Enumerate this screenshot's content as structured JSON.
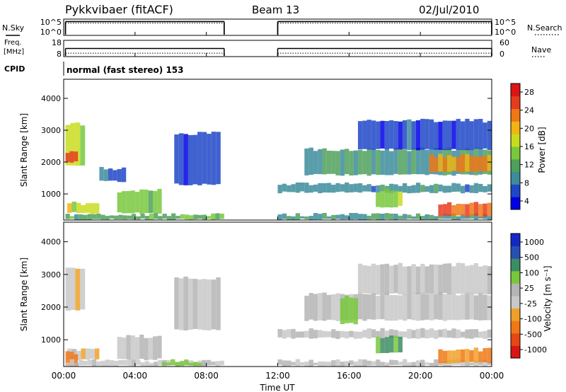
{
  "header": {
    "title": "Pykkvibaer (fitACF)",
    "beam": "Beam 13",
    "date": "02/Jul/2010"
  },
  "strip_labels": {
    "nsky": "N.Sky",
    "nsearch": "N.Search",
    "freq_line1": "Freq.",
    "freq_line2": "[MHz]",
    "nave": "Nave",
    "cpid": "CPID",
    "cpid_text": "normal (fast stereo) 153"
  },
  "colors": {
    "power_scale": [
      "#0000e6",
      "#1e46c8",
      "#3c8c9b",
      "#4fa05a",
      "#78c83c",
      "#c8dc1e",
      "#f0b414",
      "#f07814",
      "#e63c1e",
      "#dc1414"
    ],
    "velocity_scale": [
      "#dc1414",
      "#e64614",
      "#f07814",
      "#f0a028",
      "#c8c8c8",
      "#b4b4b4",
      "#78c83c",
      "#3c8c64",
      "#2850b4",
      "#1428c8"
    ]
  },
  "chart_data": [
    {
      "type": "line",
      "name": "N.Sky / N.Search",
      "left_ticks": [
        "10^5",
        "10^0"
      ],
      "right_ticks": [
        "10^5",
        "10^0"
      ],
      "x_range": [
        0,
        24
      ],
      "segments": [
        [
          0.1,
          9.0
        ],
        [
          12.0,
          24.0
        ]
      ],
      "series": [
        {
          "name": "N.Sky",
          "values_level": 0.85
        },
        {
          "name": "N.Search",
          "values_level": 0.85
        }
      ]
    },
    {
      "type": "line",
      "name": "Freq / Nave",
      "left_ticks": [
        "18",
        "8"
      ],
      "right_ticks": [
        "60",
        "0"
      ],
      "x_range": [
        0,
        24
      ],
      "segments": [
        [
          0.1,
          9.0
        ],
        [
          12.0,
          24.0
        ]
      ],
      "series": [
        {
          "name": "Freq",
          "level": 0.5
        },
        {
          "name": "Nave",
          "level": 0.3
        }
      ]
    },
    {
      "type": "heatmap",
      "name": "power",
      "ylabel": "Slant Range [km]",
      "x_range": [
        0,
        24
      ],
      "ylim": [
        180,
        4600
      ],
      "yticks": [
        1000,
        2000,
        3000,
        4000
      ],
      "colorbar": {
        "label": "Power [dB]",
        "ticks": [
          "28",
          "24",
          "20",
          "16",
          "12",
          "8",
          "4"
        ]
      },
      "features": [
        {
          "t0": 0.1,
          "t1": 1.2,
          "r0": 1900,
          "r1": 3200,
          "level": 0.55
        },
        {
          "t0": 0.1,
          "t1": 0.8,
          "r0": 2000,
          "r1": 2300,
          "level": 0.85
        },
        {
          "t0": 0.2,
          "t1": 2.0,
          "r0": 400,
          "r1": 700,
          "level": 0.55
        },
        {
          "t0": 0.1,
          "t1": 9.0,
          "r0": 200,
          "r1": 350,
          "level": 0.35
        },
        {
          "t0": 2.0,
          "t1": 3.5,
          "r0": 1400,
          "r1": 1800,
          "level": 0.2
        },
        {
          "t0": 3.0,
          "t1": 5.5,
          "r0": 400,
          "r1": 1100,
          "level": 0.45
        },
        {
          "t0": 6.2,
          "t1": 8.8,
          "r0": 1300,
          "r1": 2900,
          "level": 0.15
        },
        {
          "t0": 12.0,
          "t1": 24.0,
          "r0": 1050,
          "r1": 1300,
          "level": 0.25
        },
        {
          "t0": 12.0,
          "t1": 24.0,
          "r0": 200,
          "r1": 350,
          "level": 0.3
        },
        {
          "t0": 13.5,
          "t1": 24.0,
          "r0": 1600,
          "r1": 2400,
          "level": 0.3
        },
        {
          "t0": 20.5,
          "t1": 24.0,
          "r0": 1700,
          "r1": 2200,
          "level": 0.7
        },
        {
          "t0": 17.5,
          "t1": 19.0,
          "r0": 600,
          "r1": 1100,
          "level": 0.45
        },
        {
          "t0": 21.0,
          "t1": 24.0,
          "r0": 300,
          "r1": 700,
          "level": 0.8
        },
        {
          "t0": 16.5,
          "t1": 24.0,
          "r0": 2400,
          "r1": 3300,
          "level": 0.15
        }
      ]
    },
    {
      "type": "heatmap",
      "name": "velocity",
      "ylabel": "Slant Range [km]",
      "xlabel": "Time UT",
      "x_range": [
        0,
        24
      ],
      "ylim": [
        180,
        4600
      ],
      "yticks": [
        1000,
        2000,
        3000,
        4000
      ],
      "xticks": [
        "00:00",
        "04:00",
        "08:00",
        "12:00",
        "16:00",
        "20:00",
        "00:00"
      ],
      "colorbar": {
        "label": "Velocity [m s⁻¹]",
        "ticks": [
          "1000",
          "500",
          "100",
          "25",
          "-25",
          "-100",
          "-500",
          "-1000"
        ]
      },
      "features": [
        {
          "t0": 0.1,
          "t1": 1.2,
          "r0": 1900,
          "r1": 3200,
          "level": 0.45
        },
        {
          "t0": 0.2,
          "t1": 2.0,
          "r0": 400,
          "r1": 700,
          "level": 0.45
        },
        {
          "t0": 0.1,
          "t1": 0.8,
          "r0": 200,
          "r1": 600,
          "level": 0.2
        },
        {
          "t0": 0.1,
          "t1": 9.0,
          "r0": 200,
          "r1": 350,
          "level": 0.47
        },
        {
          "t0": 5.5,
          "t1": 8.0,
          "r0": 200,
          "r1": 350,
          "level": 0.65
        },
        {
          "t0": 3.0,
          "t1": 5.5,
          "r0": 400,
          "r1": 1100,
          "level": 0.5
        },
        {
          "t0": 6.2,
          "t1": 8.8,
          "r0": 1300,
          "r1": 2900,
          "level": 0.5
        },
        {
          "t0": 12.0,
          "t1": 24.0,
          "r0": 1050,
          "r1": 1300,
          "level": 0.5
        },
        {
          "t0": 12.0,
          "t1": 24.0,
          "r0": 200,
          "r1": 350,
          "level": 0.5
        },
        {
          "t0": 13.5,
          "t1": 24.0,
          "r0": 1600,
          "r1": 2400,
          "level": 0.5
        },
        {
          "t0": 15.5,
          "t1": 16.5,
          "r0": 1500,
          "r1": 2300,
          "level": 0.65
        },
        {
          "t0": 17.5,
          "t1": 19.0,
          "r0": 600,
          "r1": 1100,
          "level": 0.7
        },
        {
          "t0": 21.0,
          "t1": 24.0,
          "r0": 300,
          "r1": 700,
          "level": 0.3
        },
        {
          "t0": 16.5,
          "t1": 24.0,
          "r0": 2400,
          "r1": 3300,
          "level": 0.48
        }
      ]
    }
  ]
}
